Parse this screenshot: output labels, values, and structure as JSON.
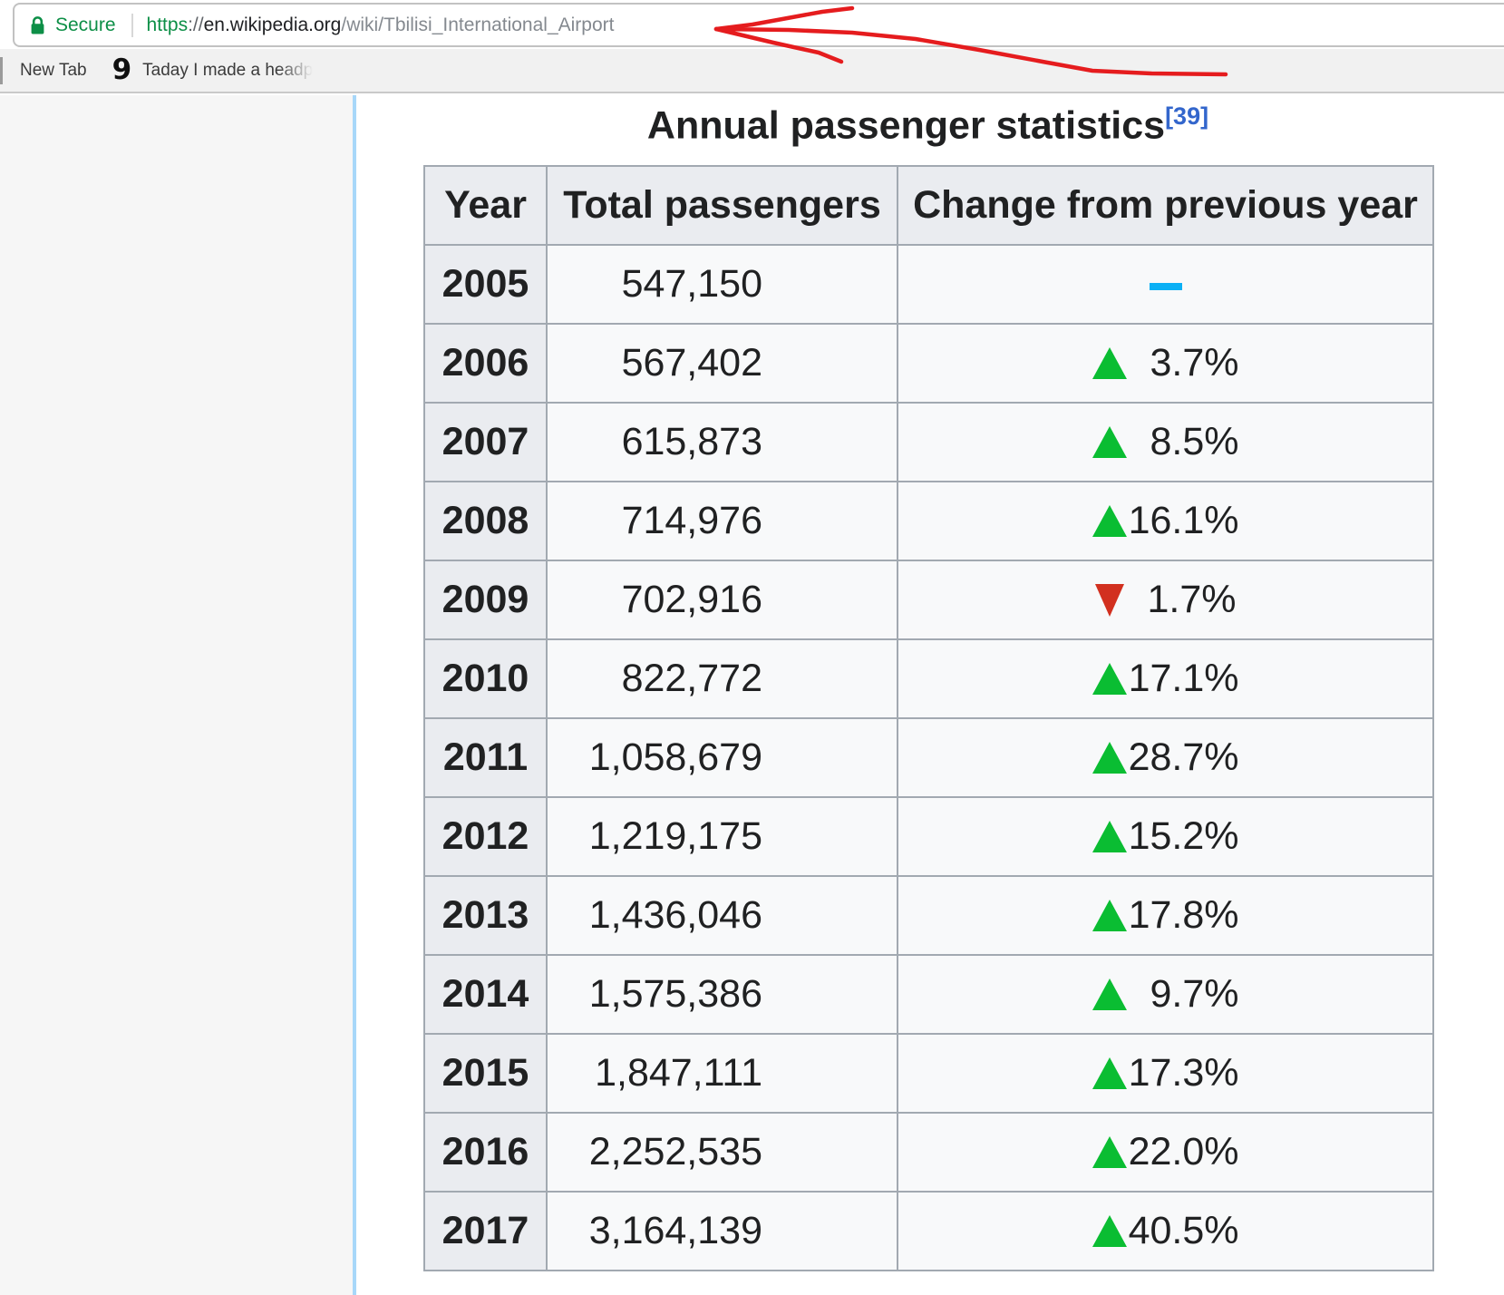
{
  "browser": {
    "security_label": "Secure",
    "url": {
      "scheme": "https",
      "separator": "://",
      "domain": "en.wikipedia.org",
      "path": "/wiki/Tbilisi_International_Airport"
    },
    "bookmarks": [
      {
        "label": "New Tab"
      },
      {
        "icon_glyph": "9",
        "label": "Taday I made a headp"
      }
    ]
  },
  "annotation": {
    "color": "#e51c1e",
    "stroke_width": 4.5,
    "paths": [
      "790,32 870,33 940,36 1010,43 1080,55 1150,68 1205,78 1270,81 1352,82",
      "790,32 830,27 863,21 907,13 940,9",
      "790,32 853,47 903,58 928,68"
    ]
  },
  "page": {
    "caption": "Annual passenger statistics",
    "caption_ref": "[39]",
    "table": {
      "headers": [
        "Year",
        "Total passengers",
        "Change from previous year"
      ],
      "rows": [
        {
          "year": "2005",
          "passengers": "547,150",
          "direction": "steady",
          "change": ""
        },
        {
          "year": "2006",
          "passengers": "567,402",
          "direction": "up",
          "change": "3.7%"
        },
        {
          "year": "2007",
          "passengers": "615,873",
          "direction": "up",
          "change": "8.5%"
        },
        {
          "year": "2008",
          "passengers": "714,976",
          "direction": "up",
          "change": "16.1%"
        },
        {
          "year": "2009",
          "passengers": "702,916",
          "direction": "down",
          "change": "1.7%"
        },
        {
          "year": "2010",
          "passengers": "822,772",
          "direction": "up",
          "change": "17.1%"
        },
        {
          "year": "2011",
          "passengers": "1,058,679",
          "direction": "up",
          "change": "28.7%"
        },
        {
          "year": "2012",
          "passengers": "1,219,175",
          "direction": "up",
          "change": "15.2%"
        },
        {
          "year": "2013",
          "passengers": "1,436,046",
          "direction": "up",
          "change": "17.8%"
        },
        {
          "year": "2014",
          "passengers": "1,575,386",
          "direction": "up",
          "change": "9.7%"
        },
        {
          "year": "2015",
          "passengers": "1,847,111",
          "direction": "up",
          "change": "17.3%"
        },
        {
          "year": "2016",
          "passengers": "2,252,535",
          "direction": "up",
          "change": "22.0%"
        },
        {
          "year": "2017",
          "passengers": "3,164,139",
          "direction": "up",
          "change": "40.5%"
        }
      ]
    }
  },
  "colors": {
    "secure_green": "#0d8f47",
    "link_blue": "#3366cc",
    "green_up": "#0abd32",
    "red_down": "#d2301f",
    "steady_blue": "#0bb0f5",
    "annotation_red": "#e51c1e"
  }
}
